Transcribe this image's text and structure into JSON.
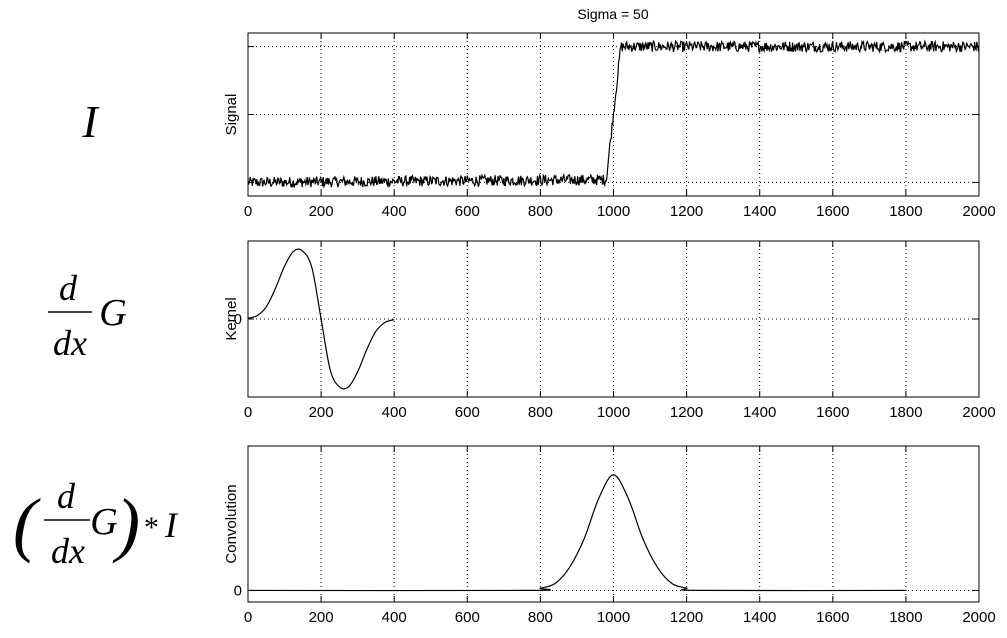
{
  "title": "Sigma = 50",
  "math_labels": {
    "signal": {
      "text": "I"
    },
    "kernel": {
      "numerator": "d",
      "denominator": "dx",
      "rest": "G"
    },
    "convolution": {
      "open": "(",
      "numerator": "d",
      "denominator": "dx",
      "rest": "G",
      "close": ")",
      "operator": "*",
      "operand": "I"
    }
  },
  "chart_data": [
    {
      "type": "line",
      "title": "Sigma = 50",
      "ylabel": "Signal",
      "xlim": [
        0,
        2000
      ],
      "ylim": [
        -0.1,
        1.1
      ],
      "x_ticks": [
        0,
        200,
        400,
        600,
        800,
        1000,
        1200,
        1400,
        1600,
        1800,
        2000
      ],
      "y_gridlines": [
        0,
        0.5,
        1
      ],
      "y_tick_labels": [],
      "grid": true,
      "series": [
        {
          "x": [
            0,
            980,
            1020,
            2000
          ],
          "y": [
            0,
            0.02,
            1,
            1
          ],
          "noise_amplitude": 0.04
        }
      ]
    },
    {
      "type": "line",
      "ylabel": "Kernel",
      "xlim": [
        0,
        2000
      ],
      "ylim": [
        -1.15,
        1.15
      ],
      "x_ticks": [
        0,
        200,
        400,
        600,
        800,
        1000,
        1200,
        1400,
        1600,
        1800,
        2000
      ],
      "y_gridlines": [
        0
      ],
      "y_tick_labels": [
        "0"
      ],
      "grid": true,
      "series": [
        {
          "x": [
            0,
            25,
            50,
            75,
            100,
            125,
            150,
            175,
            200,
            225,
            250,
            275,
            300,
            325,
            350,
            375,
            400
          ],
          "y": [
            0.01,
            0.05,
            0.18,
            0.45,
            0.78,
            1.0,
            1.0,
            0.75,
            0.0,
            -0.75,
            -1.0,
            -1.0,
            -0.78,
            -0.45,
            -0.18,
            -0.05,
            -0.01
          ]
        }
      ]
    },
    {
      "type": "line",
      "ylabel": "Convolution",
      "xlim": [
        0,
        2000
      ],
      "ylim": [
        -0.1,
        1.25
      ],
      "x_ticks": [
        0,
        200,
        400,
        600,
        800,
        1000,
        1200,
        1400,
        1600,
        1800,
        2000
      ],
      "y_gridlines": [
        0
      ],
      "y_tick_labels": [
        "0"
      ],
      "grid": true,
      "series": [
        {
          "x": [
            0,
            760,
            800,
            840,
            880,
            920,
            960,
            1000,
            1040,
            1080,
            1120,
            1160,
            1200,
            1240,
            1800
          ],
          "y": [
            0,
            0.0,
            0.02,
            0.06,
            0.2,
            0.45,
            0.8,
            1.0,
            0.8,
            0.45,
            0.2,
            0.06,
            0.02,
            0.0,
            0
          ]
        }
      ]
    }
  ]
}
